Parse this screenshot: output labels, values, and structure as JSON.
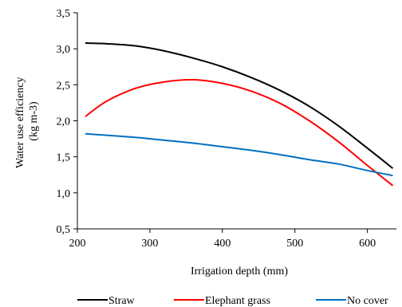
{
  "chart_data": {
    "type": "line",
    "title": "",
    "xlabel": "Irrigation depth (mm)",
    "ylabel": [
      "Water use efficiency",
      "(kg m-3)"
    ],
    "xlim": [
      200,
      640
    ],
    "ylim": [
      0.5,
      3.5
    ],
    "xticks": [
      200,
      300,
      400,
      500,
      600
    ],
    "xtick_labels": [
      "200",
      "300",
      "400",
      "500",
      "600"
    ],
    "yticks": [
      0.5,
      1.0,
      1.5,
      2.0,
      2.5,
      3.0,
      3.5
    ],
    "ytick_labels": [
      "0,5",
      "1,0",
      "1,5",
      "2,0",
      "2,5",
      "3,0",
      "3,5"
    ],
    "grid": false,
    "legend_position": "bottom",
    "series": [
      {
        "name": "Straw",
        "color": "#000000",
        "x": [
          211,
          240,
          280,
          320,
          360,
          400,
          440,
          480,
          520,
          560,
          600,
          635
        ],
        "y": [
          3.08,
          3.07,
          3.04,
          2.97,
          2.87,
          2.75,
          2.6,
          2.42,
          2.2,
          1.93,
          1.62,
          1.34
        ]
      },
      {
        "name": "Elephant grass",
        "color": "#ff0000",
        "x": [
          211,
          240,
          280,
          320,
          360,
          400,
          440,
          480,
          520,
          560,
          600,
          635
        ],
        "y": [
          2.06,
          2.27,
          2.45,
          2.54,
          2.57,
          2.52,
          2.41,
          2.24,
          2.0,
          1.71,
          1.38,
          1.1
        ]
      },
      {
        "name": "No cover",
        "color": "#0070c0",
        "x": [
          211,
          240,
          280,
          320,
          360,
          400,
          440,
          480,
          520,
          560,
          600,
          635
        ],
        "y": [
          1.82,
          1.8,
          1.77,
          1.73,
          1.69,
          1.64,
          1.59,
          1.53,
          1.46,
          1.4,
          1.31,
          1.24
        ]
      }
    ]
  }
}
